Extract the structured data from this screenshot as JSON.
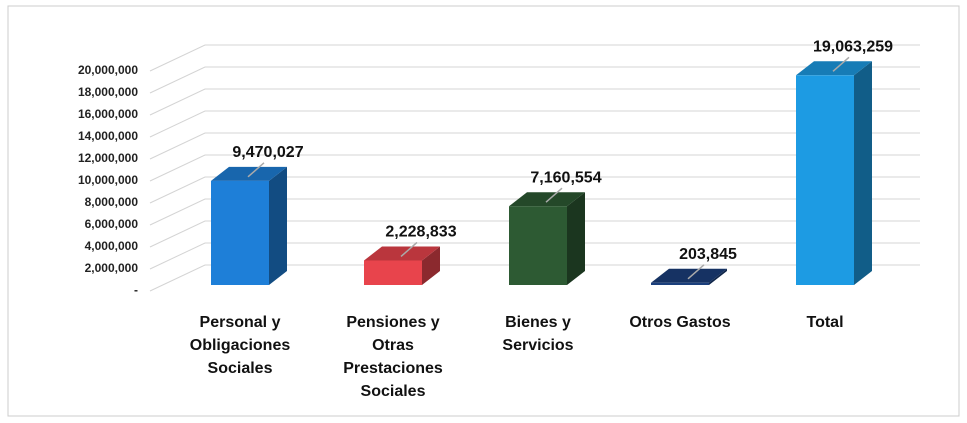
{
  "chart_data": {
    "type": "bar3d",
    "categories": [
      "Personal y Obligaciones Sociales",
      "Pensiones y Otras Prestaciones Sociales",
      "Bienes y Servicios",
      "Otros Gastos",
      "Total"
    ],
    "values": [
      9470027,
      2228833,
      7160554,
      203845,
      19063259
    ],
    "value_labels": [
      "9,470,027",
      "2,228,833",
      "7,160,554",
      "203,845",
      "19,063,259"
    ],
    "colors": [
      "#1e7fd8",
      "#e8444c",
      "#2d5a33",
      "#1b3f7c",
      "#1d9be3"
    ],
    "ylim": [
      0,
      20000000
    ],
    "yticks": [
      {
        "value": 0,
        "label": "-"
      },
      {
        "value": 2000000,
        "label": "2,000,000"
      },
      {
        "value": 4000000,
        "label": "4,000,000"
      },
      {
        "value": 6000000,
        "label": "6,000,000"
      },
      {
        "value": 8000000,
        "label": "8,000,000"
      },
      {
        "value": 10000000,
        "label": "10,000,000"
      },
      {
        "value": 12000000,
        "label": "12,000,000"
      },
      {
        "value": 14000000,
        "label": "14,000,000"
      },
      {
        "value": 16000000,
        "label": "16,000,000"
      },
      {
        "value": 18000000,
        "label": "18,000,000"
      },
      {
        "value": 20000000,
        "label": "20,000,000"
      }
    ],
    "grid": true
  }
}
